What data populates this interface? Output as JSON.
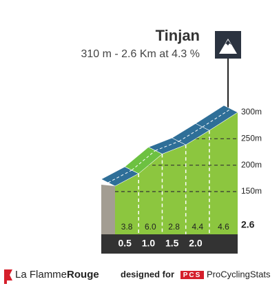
{
  "chart_data": {
    "type": "climb-profile",
    "title": "Tinjan",
    "subtitle": "310 m - 2.6 Km at 4.3 %",
    "x": [
      0.5,
      {
        "value": 1,
        "label": "1.0"
      },
      1.5,
      {
        "value": 2,
        "label": "2.0"
      },
      2.6
    ],
    "xlim": [
      0,
      2.6
    ],
    "values": [
      3.8,
      6.0,
      2.8,
      4.4,
      4.6
    ],
    "value_labels": [
      "3.8",
      "6.0",
      "2.8",
      "4.4",
      "4.6"
    ],
    "segment_colors": [
      "#2f6f98",
      "#6dc141",
      "#2f6f98",
      "#2f6f98",
      "#2f6f98"
    ],
    "face_color": "#8cc63f",
    "ylim": [
      150,
      300
    ],
    "yticks": [
      {
        "value": 150,
        "label": "150m"
      },
      {
        "value": 200,
        "label": "200m"
      },
      {
        "value": 250,
        "label": "250m"
      },
      {
        "value": 300,
        "label": "300m"
      }
    ]
  },
  "footer": {
    "brand_light": "La Flamme",
    "brand_bold": "Rouge",
    "designed_for": "designed for",
    "pcs_logo": "PCS",
    "site": "ProCyclingStats"
  }
}
